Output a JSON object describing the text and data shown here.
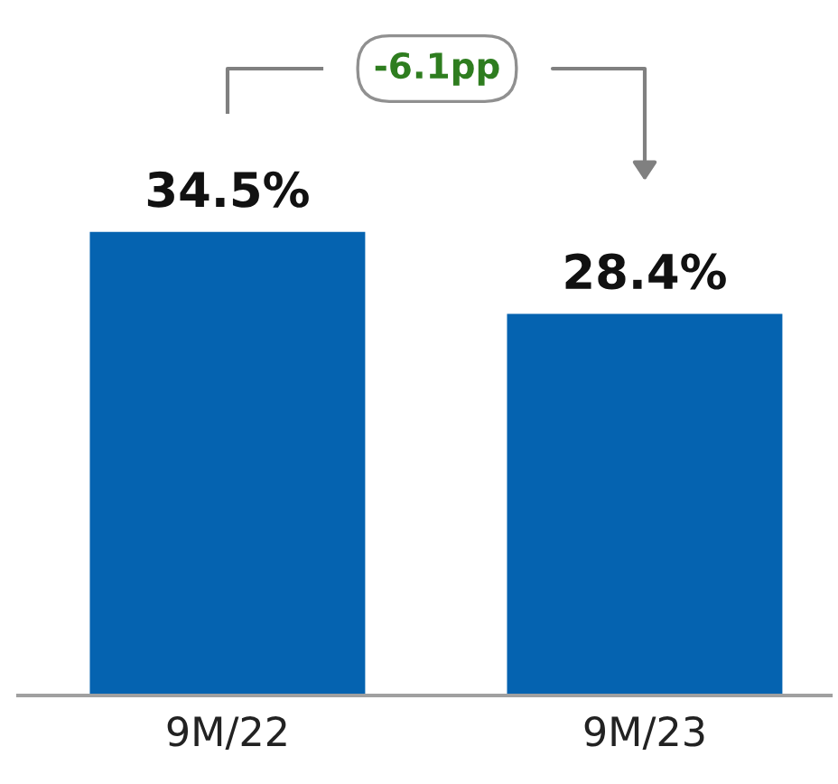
{
  "chart_data": {
    "type": "bar",
    "categories": [
      "9M/22",
      "9M/23"
    ],
    "values": [
      34.5,
      28.4
    ],
    "color": "#0563b0",
    "value_labels": [
      "34.5%",
      "28.4%"
    ],
    "annotations": [
      "-6.1pp"
    ]
  }
}
